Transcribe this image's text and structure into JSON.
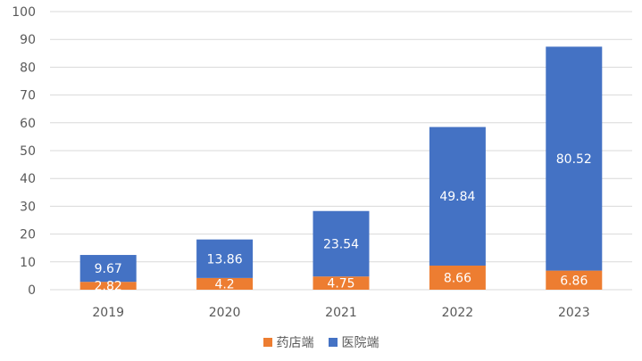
{
  "chart_data": {
    "type": "bar",
    "stacked": true,
    "title": "",
    "xlabel": "",
    "ylabel": "",
    "categories": [
      "2019",
      "2020",
      "2021",
      "2022",
      "2023"
    ],
    "ylim": [
      0,
      100
    ],
    "yticks": [
      "0",
      "10",
      "20",
      "30",
      "40",
      "50",
      "60",
      "70",
      "80",
      "90",
      "100"
    ],
    "grid": true,
    "legend_position": "bottom",
    "series": [
      {
        "name": "药店端",
        "color": "#ED7D31",
        "values": [
          2.82,
          4.2,
          4.75,
          8.66,
          6.86
        ],
        "labels": [
          "2.82",
          "4.2",
          "4.75",
          "8.66",
          "6.86"
        ]
      },
      {
        "name": "医院端",
        "color": "#4472C4",
        "values": [
          9.67,
          13.86,
          23.54,
          49.84,
          80.52
        ],
        "labels": [
          "9.67",
          "13.86",
          "23.54",
          "49.84",
          "80.52"
        ]
      }
    ]
  }
}
